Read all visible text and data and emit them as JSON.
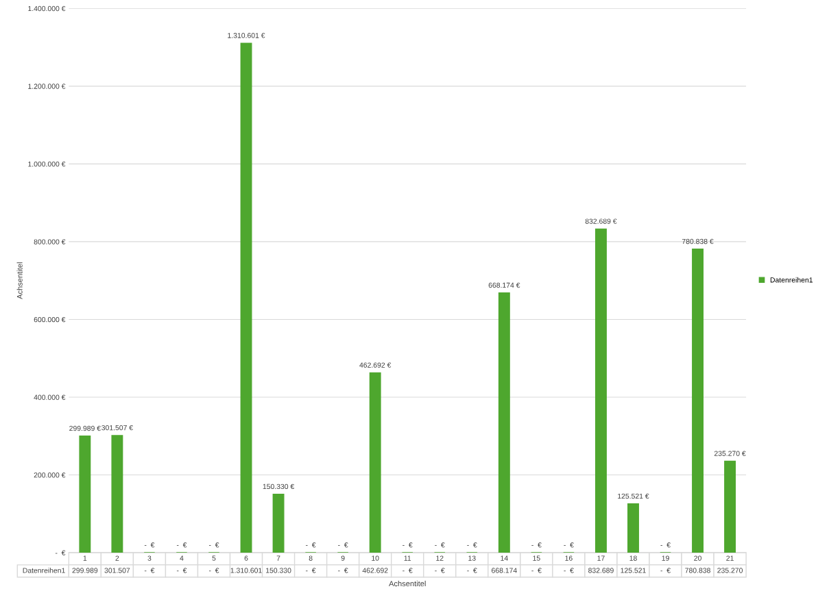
{
  "chart_data": {
    "type": "bar",
    "xlabel": "Achsentitel",
    "ylabel": "Achsentitel",
    "categories": [
      "1",
      "2",
      "3",
      "4",
      "5",
      "6",
      "7",
      "8",
      "9",
      "10",
      "11",
      "12",
      "13",
      "14",
      "15",
      "16",
      "17",
      "18",
      "19",
      "20",
      "21"
    ],
    "series": [
      {
        "name": "Datenreihen1",
        "color": "#4ea72e",
        "values": [
          299989,
          301507,
          0,
          0,
          0,
          1310601,
          150330,
          0,
          0,
          462692,
          0,
          0,
          0,
          668174,
          0,
          0,
          832689,
          125521,
          0,
          780838,
          235270
        ],
        "value_labels": [
          "299.989 €",
          "301.507 €",
          "-  €",
          "-  €",
          "-  €",
          "1.310.601 €",
          "150.330 €",
          "-  €",
          "-  €",
          "462.692 €",
          "-  €",
          "-  €",
          "-  €",
          "668.174 €",
          "-  €",
          "-  €",
          "832.689 €",
          "125.521 €",
          "-  €",
          "780.838 €",
          "235.270 €"
        ]
      }
    ],
    "ylim": [
      0,
      1400000
    ],
    "yticks": [
      {
        "value": 0,
        "label": "-  €"
      },
      {
        "value": 200000,
        "label": "200.000 €"
      },
      {
        "value": 400000,
        "label": "400.000 €"
      },
      {
        "value": 600000,
        "label": "600.000 €"
      },
      {
        "value": 800000,
        "label": "800.000 €"
      },
      {
        "value": 1000000,
        "label": "1.000.000 €"
      },
      {
        "value": 1200000,
        "label": "1.200.000 €"
      },
      {
        "value": 1400000,
        "label": "1.400.000 €"
      }
    ],
    "annotations": [
      "299.989",
      "301.507",
      "-  €",
      "-  €",
      "-  €",
      "1.310.601",
      "150.330",
      "-  €",
      "-  €",
      "462.692",
      "-  €",
      "-  €",
      "-  €",
      "668.174",
      "-  €",
      "-  €",
      "832.689",
      "125.521",
      "-  €",
      "780.838",
      "235.270"
    ],
    "grid": "y",
    "legend": "right",
    "data_labels": false
  }
}
